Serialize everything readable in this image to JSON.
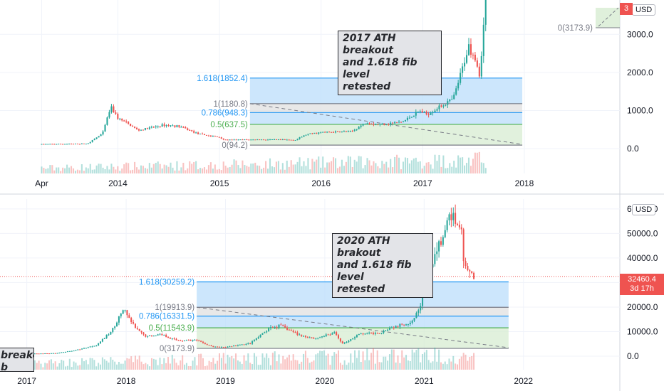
{
  "colors": {
    "up": "#26a69a",
    "down": "#ef5350",
    "fib_blue_fill": "#bbdefb",
    "fib_blue_line": "#2196f3",
    "fib_grey_fill": "#e0e0e0",
    "fib_green_fill": "#d7ecd2",
    "fib_green_line": "#4caf50",
    "grid": "#f0f3fa",
    "axis_text": "#131722",
    "price_line": "#ef5350"
  },
  "chart_data": [
    {
      "type": "candlestick",
      "currency_badge": "USD",
      "annotation": "2017 ATH breakout\nand 1.618 fib level\nretested",
      "y_ticks": [
        "3000.0",
        "2000.0",
        "1000.0",
        "0.0"
      ],
      "y_tick_values": [
        3000,
        2000,
        1000,
        0
      ],
      "ylim": [
        -650,
        3900
      ],
      "x_ticks": [
        "Apr",
        "2014",
        "2015",
        "2016",
        "2017",
        "2018"
      ],
      "x_tick_dates": [
        2013.25,
        2014.0,
        2015.0,
        2016.0,
        2017.0,
        2018.0
      ],
      "xlim": [
        2012.84,
        2018.94
      ],
      "fib_levels": [
        {
          "label": "1.618(1852.4)",
          "value": 1852.4,
          "color": "#2196f3"
        },
        {
          "label": "1(1180.8)",
          "value": 1180.8,
          "color": "#787b86"
        },
        {
          "label": "0.786(948.3)",
          "value": 948.3,
          "color": "#2196f3"
        },
        {
          "label": "0.5(637.5)",
          "value": 637.5,
          "color": "#4caf50"
        },
        {
          "label": "0(94.2)",
          "value": 94.2,
          "color": "#787b86"
        }
      ],
      "fib_x_range": [
        2015.3,
        2017.98
      ],
      "extra_label": "0(3173.9)",
      "extra_label_value": 3173.9,
      "price_tag": "3",
      "series_keypoints": [
        [
          2013.25,
          120
        ],
        [
          2013.7,
          130
        ],
        [
          2013.85,
          400
        ],
        [
          2013.93,
          1100
        ],
        [
          2014.0,
          800
        ],
        [
          2014.1,
          650
        ],
        [
          2014.2,
          480
        ],
        [
          2014.45,
          620
        ],
        [
          2014.6,
          590
        ],
        [
          2014.8,
          380
        ],
        [
          2015.0,
          300
        ],
        [
          2015.05,
          230
        ],
        [
          2015.4,
          240
        ],
        [
          2015.75,
          230
        ],
        [
          2015.85,
          370
        ],
        [
          2016.0,
          430
        ],
        [
          2016.3,
          450
        ],
        [
          2016.45,
          700
        ],
        [
          2016.55,
          630
        ],
        [
          2016.8,
          700
        ],
        [
          2016.97,
          990
        ],
        [
          2017.04,
          900
        ],
        [
          2017.2,
          1150
        ],
        [
          2017.3,
          1300
        ],
        [
          2017.38,
          2000
        ],
        [
          2017.45,
          2700
        ],
        [
          2017.52,
          2400
        ],
        [
          2017.56,
          1900
        ],
        [
          2017.62,
          3900
        ]
      ]
    },
    {
      "type": "candlestick",
      "currency_badge": "USD",
      "annotation": "2020 ATH brakout\nand 1.618 fib level\nretested",
      "left_annotation": "breakout\nb level",
      "y_ticks": [
        "60000.0",
        "50000.0",
        "40000.0",
        "30000.0",
        "20000.0",
        "10000.0",
        "0.0"
      ],
      "y_tick_values": [
        60000,
        50000,
        40000,
        30000,
        20000,
        10000,
        0
      ],
      "ylim": [
        -5500,
        64000
      ],
      "x_ticks": [
        "2017",
        "2018",
        "2019",
        "2020",
        "2021",
        "2022"
      ],
      "x_tick_dates": [
        2017.0,
        2018.0,
        2019.0,
        2020.0,
        2021.0,
        2022.0
      ],
      "xlim": [
        2016.73,
        2022.97
      ],
      "fib_levels": [
        {
          "label": "1.618(30259.2)",
          "value": 30259.2,
          "color": "#2196f3"
        },
        {
          "label": "1(19913.9)",
          "value": 19913.9,
          "color": "#787b86"
        },
        {
          "label": "0.786(16331.5)",
          "value": 16331.5,
          "color": "#2196f3"
        },
        {
          "label": "0.5(11543.9)",
          "value": 11543.9,
          "color": "#4caf50"
        },
        {
          "label": "0(3173.9)",
          "value": 3173.9,
          "color": "#787b86"
        }
      ],
      "fib_x_range": [
        2018.71,
        2021.85
      ],
      "price_tag": "32460.4",
      "price_tag_sub": "3d 17h",
      "last_price": 32460.4,
      "series_keypoints": [
        [
          2016.75,
          900
        ],
        [
          2017.0,
          1000
        ],
        [
          2017.3,
          1200
        ],
        [
          2017.5,
          2500
        ],
        [
          2017.7,
          4500
        ],
        [
          2017.85,
          10000
        ],
        [
          2017.97,
          19000
        ],
        [
          2018.1,
          11000
        ],
        [
          2018.2,
          8000
        ],
        [
          2018.35,
          9000
        ],
        [
          2018.5,
          6500
        ],
        [
          2018.7,
          6500
        ],
        [
          2018.87,
          3800
        ],
        [
          2019.0,
          3700
        ],
        [
          2019.25,
          5200
        ],
        [
          2019.45,
          11500
        ],
        [
          2019.55,
          12500
        ],
        [
          2019.75,
          8500
        ],
        [
          2019.9,
          7200
        ],
        [
          2020.1,
          9500
        ],
        [
          2020.18,
          5000
        ],
        [
          2020.35,
          9000
        ],
        [
          2020.55,
          9500
        ],
        [
          2020.65,
          11500
        ],
        [
          2020.85,
          13500
        ],
        [
          2020.95,
          19000
        ],
        [
          2021.02,
          30000
        ],
        [
          2021.1,
          40000
        ],
        [
          2021.2,
          50000
        ],
        [
          2021.28,
          58000
        ],
        [
          2021.33,
          55000
        ],
        [
          2021.38,
          50000
        ],
        [
          2021.4,
          38000
        ],
        [
          2021.45,
          34000
        ],
        [
          2021.5,
          32460
        ]
      ]
    }
  ]
}
